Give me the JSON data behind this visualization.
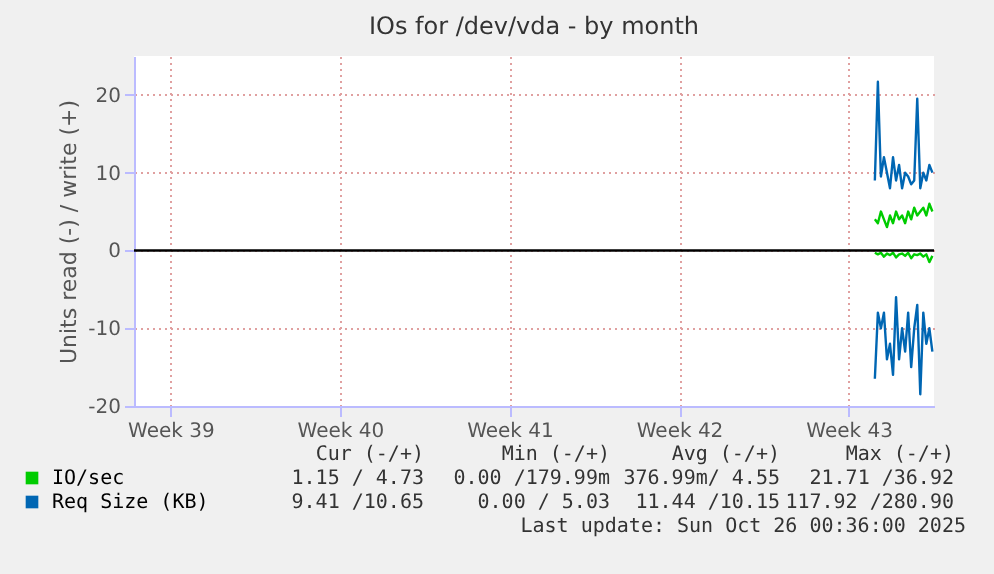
{
  "chart_data": {
    "type": "line",
    "title": "IOs for /dev/vda - by month",
    "ylabel": "Units read (-) / write (+)",
    "x": [
      "2025-10-23T14:00",
      "2025-10-23T17:00",
      "2025-10-23T20:00",
      "2025-10-23T23:00",
      "2025-10-24T02:00",
      "2025-10-24T05:00",
      "2025-10-24T08:00",
      "2025-10-24T11:00",
      "2025-10-24T14:00",
      "2025-10-24T17:00",
      "2025-10-24T20:00",
      "2025-10-24T23:00",
      "2025-10-25T02:00",
      "2025-10-25T05:00",
      "2025-10-25T08:00",
      "2025-10-25T11:00",
      "2025-10-25T14:00",
      "2025-10-25T17:00",
      "2025-10-25T20:00",
      "2025-10-25T23:00"
    ],
    "series": [
      {
        "name": "IO/sec",
        "color": "#00cc00",
        "values": [
          4,
          3.5,
          5,
          4,
          3,
          4.5,
          3.5,
          5,
          4,
          4.5,
          3.5,
          5,
          4,
          5.5,
          4.5,
          5,
          5.5,
          4.5,
          6,
          5
        ]
      },
      {
        "color": "#00cc00",
        "values": [
          -0.3,
          -0.5,
          -0.3,
          -0.8,
          -0.4,
          -0.6,
          -0.3,
          -0.9,
          -0.5,
          -0.4,
          -0.7,
          -0.3,
          -1.0,
          -0.5,
          -0.6,
          -0.4,
          -0.8,
          -0.5,
          -1.5,
          -0.7
        ]
      },
      {
        "name": "Req Size (KB)",
        "color": "#0066b3",
        "values": [
          9,
          21.7,
          9.5,
          12,
          10,
          8,
          12,
          9,
          11,
          8,
          10,
          9.5,
          8.5,
          9,
          19.5,
          8,
          10,
          9,
          11,
          10
        ]
      },
      {
        "color": "#0066b3",
        "values": [
          -16.5,
          -8,
          -10,
          -8,
          -14,
          -12,
          -16,
          -6,
          -14,
          -10,
          -13,
          -8,
          -15,
          -10,
          -7,
          -18.5,
          -8,
          -12,
          -10,
          -13
        ]
      }
    ],
    "xlim": [
      "2025-09-23T00:00",
      "2025-10-26T00:36"
    ],
    "xticks": [
      {
        "value": "2025-09-24T12:00",
        "label": "Week 39"
      },
      {
        "value": "2025-10-01T12:00",
        "label": "Week 40"
      },
      {
        "value": "2025-10-08T12:00",
        "label": "Week 41"
      },
      {
        "value": "2025-10-15T12:00",
        "label": "Week 42"
      },
      {
        "value": "2025-10-22T12:00",
        "label": "Week 43"
      }
    ],
    "ylim": [
      -20,
      25
    ],
    "yticks": [
      -20,
      -10,
      0,
      10,
      20
    ],
    "grid": true,
    "legend": "bottom",
    "marker": "none",
    "line_style": "solid",
    "ref_lines": [
      {
        "axis": "y",
        "value": 0,
        "color": "#000000"
      }
    ],
    "annotations": [
      "Cur (-/+)",
      "Min (-/+)",
      "Avg (-/+)",
      "Max (-/+)",
      "1.15 / 4.73",
      "0.00 /179.99m",
      "376.99m/ 4.55",
      "21.71 /36.92",
      "9.41 /10.65",
      "0.00 / 5.03",
      "11.44 /10.15",
      "117.92 /280.90",
      "Last update: Sun Oct 26 00:36:00 2025"
    ]
  }
}
